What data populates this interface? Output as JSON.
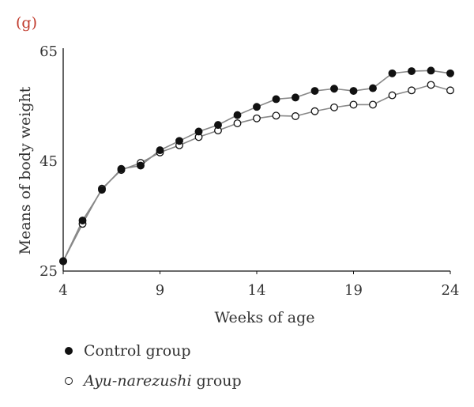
{
  "panel_label": "(g)",
  "chart_data": {
    "type": "line",
    "xlabel": "Weeks of age",
    "ylabel": "Means of body weight",
    "xlim": [
      4,
      24
    ],
    "ylim": [
      25,
      65
    ],
    "xticks": [
      4,
      9,
      14,
      19,
      24
    ],
    "yticks": [
      25,
      45,
      65
    ],
    "x": [
      4,
      5,
      6,
      7,
      8,
      9,
      10,
      11,
      12,
      13,
      14,
      15,
      16,
      17,
      18,
      19,
      20,
      21,
      22,
      23,
      24
    ],
    "series": [
      {
        "name": "Control group",
        "marker": "filled",
        "values": [
          26.8,
          34.2,
          39.8,
          43.6,
          44.2,
          47.0,
          48.7,
          50.4,
          51.6,
          53.4,
          54.9,
          56.3,
          56.6,
          57.8,
          58.2,
          57.8,
          58.3,
          61.0,
          61.4,
          61.5,
          61.0
        ]
      },
      {
        "name": "Ayu-narezushi group",
        "marker": "hollow",
        "values": [
          26.8,
          33.6,
          40.0,
          43.4,
          44.7,
          46.6,
          47.9,
          49.4,
          50.6,
          51.9,
          52.8,
          53.3,
          53.2,
          54.1,
          54.8,
          55.3,
          55.3,
          57.0,
          57.9,
          58.9,
          57.9
        ]
      }
    ],
    "line_color": "#888888",
    "marker_color": "#111111",
    "legend": {
      "placement": "bottom-left",
      "control_label": "Control group",
      "ayu_label_italic": "Ayu-narezushi",
      "ayu_label_suffix": " group"
    }
  }
}
